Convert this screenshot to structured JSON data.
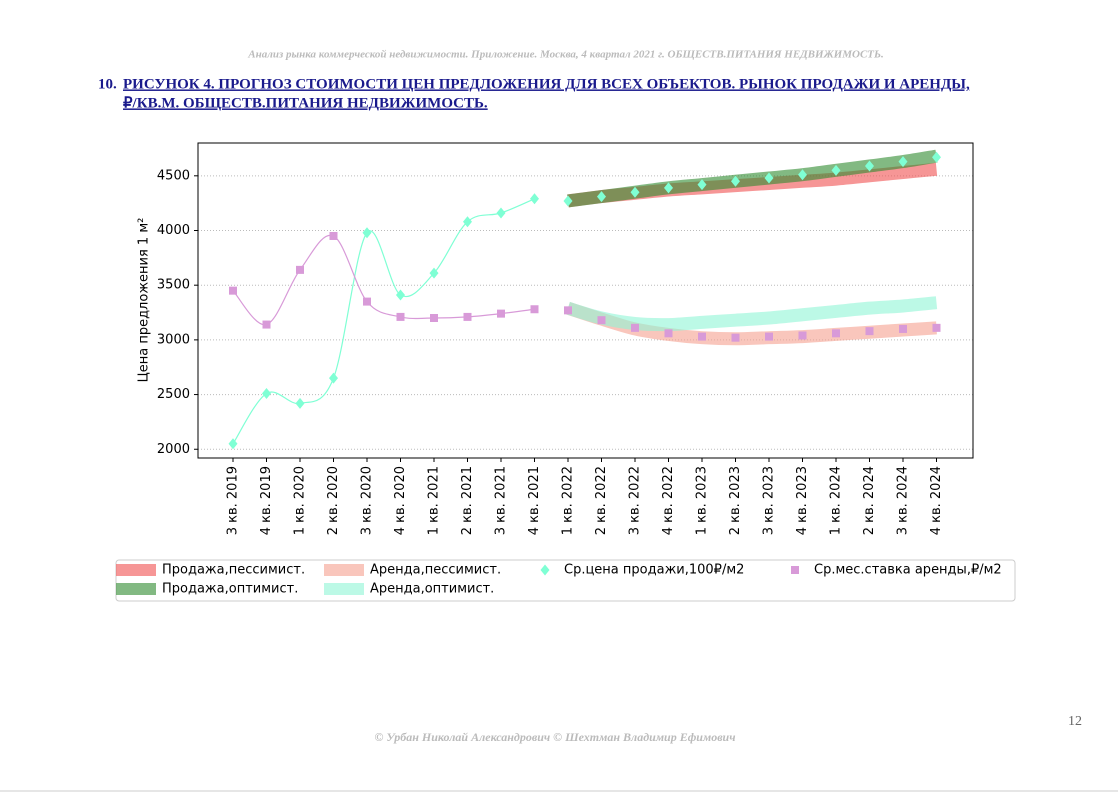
{
  "header": {
    "running_title": "Анализ рынка коммерческой недвижимости. Приложение.  Москва,  4 квартал 2021 г.  ОБЩЕСТВ.ПИТАНИЯ НЕДВИЖИМОСТЬ.",
    "number": "10.",
    "title_line1": "РИСУНОК 4. ПРОГНОЗ СТОИМОСТИ ЦЕН ПРЕДЛОЖЕНИЯ ДЛЯ ВСЕХ ОБЪЕКТОВ. РЫНОК ПРОДАЖИ И АРЕНДЫ,",
    "title_line2": "₽/КВ.М. ОБЩЕСТВ.ПИТАНИЯ НЕДВИЖИМОСТЬ."
  },
  "chart_data": {
    "type": "band_scatter",
    "ylabel": "Цена предложения 1 м²",
    "categories": [
      "3 кв. 2019",
      "4 кв. 2019",
      "1 кв. 2020",
      "2 кв. 2020",
      "3 кв. 2020",
      "4 кв. 2020",
      "1 кв. 2021",
      "2 кв. 2021",
      "3 кв. 2021",
      "4 кв. 2021",
      "1 кв. 2022",
      "2 кв. 2022",
      "3 кв. 2022",
      "4 кв. 2022",
      "1 кв. 2023",
      "2 кв. 2023",
      "3 кв. 2023",
      "4 кв. 2023",
      "1 кв. 2024",
      "2 кв. 2024",
      "3 кв. 2024",
      "4 кв. 2024"
    ],
    "ylim": [
      1920,
      4800
    ],
    "yticks": [
      2000,
      2500,
      3000,
      3500,
      4000,
      4500
    ],
    "grid": true,
    "series": [
      {
        "name": "Продажа,пессимист.",
        "kind": "band",
        "color": "#f05050",
        "values": [
          null,
          null,
          null,
          null,
          null,
          null,
          null,
          null,
          null,
          null,
          4270,
          4310,
          4340,
          4370,
          4390,
          4410,
          4430,
          4450,
          4470,
          4500,
          4530,
          4560
        ]
      },
      {
        "name": "Продажа,оптимист.",
        "kind": "band",
        "color": "#2e8b2e",
        "values": [
          null,
          null,
          null,
          null,
          null,
          null,
          null,
          null,
          null,
          null,
          4270,
          4310,
          4350,
          4390,
          4420,
          4450,
          4480,
          4510,
          4550,
          4590,
          4630,
          4680
        ]
      },
      {
        "name": "Аренда,пессимист.",
        "kind": "band",
        "color": "#f5a090",
        "values": [
          null,
          null,
          null,
          null,
          null,
          null,
          null,
          null,
          null,
          null,
          3290,
          3190,
          3100,
          3050,
          3020,
          3010,
          3020,
          3030,
          3050,
          3070,
          3090,
          3110
        ]
      },
      {
        "name": "Аренда,оптимист.",
        "kind": "band",
        "color": "#90f5d5",
        "values": [
          null,
          null,
          null,
          null,
          null,
          null,
          null,
          null,
          null,
          null,
          3290,
          3200,
          3150,
          3140,
          3160,
          3180,
          3200,
          3230,
          3260,
          3290,
          3310,
          3340
        ]
      },
      {
        "name": "Ср.цена продажи,100₽/м2",
        "kind": "diamond",
        "color": "#7fffd4",
        "values": [
          2050,
          2510,
          2420,
          2650,
          3980,
          3410,
          3610,
          4080,
          4160,
          4290,
          4270,
          4310,
          4350,
          4390,
          4420,
          4450,
          4480,
          4510,
          4550,
          4590,
          4630,
          4670
        ]
      },
      {
        "name": "Ср.мес.ставка аренды,₽/м2",
        "kind": "square",
        "color": "#d89ad8",
        "values": [
          3450,
          3140,
          3640,
          3950,
          3350,
          3210,
          3200,
          3210,
          3240,
          3280,
          3270,
          3180,
          3110,
          3060,
          3030,
          3020,
          3030,
          3040,
          3060,
          3080,
          3100,
          3110
        ]
      }
    ]
  },
  "footer": {
    "copyright": "© Урбан Николай Александрович   © Шехтман Владимир Ефимович",
    "page": "12"
  }
}
